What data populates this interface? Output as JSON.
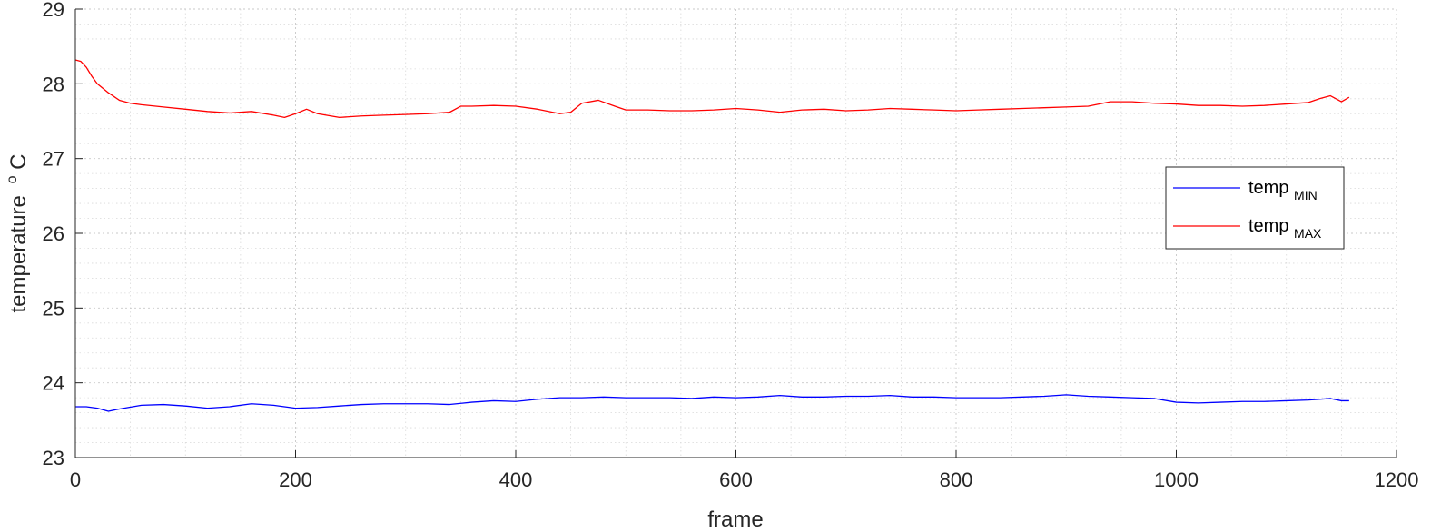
{
  "chart_data": {
    "type": "line",
    "title": "",
    "xlabel": "frame",
    "ylabel": "temperature",
    "ylabel_sup": "o",
    "ylabel_unit": "C",
    "xlim": [
      0,
      1200
    ],
    "ylim": [
      23,
      29
    ],
    "x_ticks": [
      "0",
      "200",
      "400",
      "600",
      "800",
      "1000",
      "1200"
    ],
    "y_ticks": [
      "23",
      "24",
      "25",
      "26",
      "27",
      "28",
      "29"
    ],
    "grid": true,
    "minor_grid": true,
    "legend_position": "right",
    "series": [
      {
        "name": "temp",
        "name_sub": "MIN",
        "color": "#0000ff",
        "points": [
          [
            0,
            23.68
          ],
          [
            10,
            23.68
          ],
          [
            20,
            23.66
          ],
          [
            30,
            23.62
          ],
          [
            40,
            23.65
          ],
          [
            60,
            23.7
          ],
          [
            80,
            23.71
          ],
          [
            100,
            23.69
          ],
          [
            120,
            23.66
          ],
          [
            140,
            23.68
          ],
          [
            160,
            23.72
          ],
          [
            180,
            23.7
          ],
          [
            200,
            23.66
          ],
          [
            220,
            23.67
          ],
          [
            240,
            23.69
          ],
          [
            260,
            23.71
          ],
          [
            280,
            23.72
          ],
          [
            300,
            23.72
          ],
          [
            320,
            23.72
          ],
          [
            340,
            23.71
          ],
          [
            360,
            23.74
          ],
          [
            380,
            23.76
          ],
          [
            400,
            23.75
          ],
          [
            420,
            23.78
          ],
          [
            440,
            23.8
          ],
          [
            460,
            23.8
          ],
          [
            480,
            23.81
          ],
          [
            500,
            23.8
          ],
          [
            520,
            23.8
          ],
          [
            540,
            23.8
          ],
          [
            560,
            23.79
          ],
          [
            580,
            23.81
          ],
          [
            600,
            23.8
          ],
          [
            620,
            23.81
          ],
          [
            640,
            23.83
          ],
          [
            660,
            23.81
          ],
          [
            680,
            23.81
          ],
          [
            700,
            23.82
          ],
          [
            720,
            23.82
          ],
          [
            740,
            23.83
          ],
          [
            760,
            23.81
          ],
          [
            780,
            23.81
          ],
          [
            800,
            23.8
          ],
          [
            820,
            23.8
          ],
          [
            840,
            23.8
          ],
          [
            860,
            23.81
          ],
          [
            880,
            23.82
          ],
          [
            900,
            23.84
          ],
          [
            920,
            23.82
          ],
          [
            940,
            23.81
          ],
          [
            960,
            23.8
          ],
          [
            980,
            23.79
          ],
          [
            1000,
            23.74
          ],
          [
            1020,
            23.73
          ],
          [
            1040,
            23.74
          ],
          [
            1060,
            23.75
          ],
          [
            1080,
            23.75
          ],
          [
            1100,
            23.76
          ],
          [
            1120,
            23.77
          ],
          [
            1140,
            23.79
          ],
          [
            1150,
            23.76
          ],
          [
            1157,
            23.76
          ]
        ]
      },
      {
        "name": "temp",
        "name_sub": "MAX",
        "color": "#ff0000",
        "points": [
          [
            0,
            28.32
          ],
          [
            5,
            28.3
          ],
          [
            10,
            28.22
          ],
          [
            15,
            28.1
          ],
          [
            20,
            28.0
          ],
          [
            30,
            27.88
          ],
          [
            40,
            27.78
          ],
          [
            50,
            27.74
          ],
          [
            60,
            27.72
          ],
          [
            80,
            27.69
          ],
          [
            100,
            27.66
          ],
          [
            120,
            27.63
          ],
          [
            140,
            27.61
          ],
          [
            160,
            27.63
          ],
          [
            180,
            27.58
          ],
          [
            190,
            27.55
          ],
          [
            200,
            27.6
          ],
          [
            210,
            27.66
          ],
          [
            220,
            27.6
          ],
          [
            240,
            27.55
          ],
          [
            260,
            27.57
          ],
          [
            280,
            27.58
          ],
          [
            300,
            27.59
          ],
          [
            320,
            27.6
          ],
          [
            340,
            27.62
          ],
          [
            350,
            27.7
          ],
          [
            360,
            27.7
          ],
          [
            380,
            27.71
          ],
          [
            400,
            27.7
          ],
          [
            420,
            27.66
          ],
          [
            440,
            27.6
          ],
          [
            450,
            27.62
          ],
          [
            460,
            27.74
          ],
          [
            475,
            27.78
          ],
          [
            490,
            27.7
          ],
          [
            500,
            27.65
          ],
          [
            520,
            27.65
          ],
          [
            540,
            27.64
          ],
          [
            560,
            27.64
          ],
          [
            580,
            27.65
          ],
          [
            600,
            27.67
          ],
          [
            620,
            27.65
          ],
          [
            640,
            27.62
          ],
          [
            660,
            27.65
          ],
          [
            680,
            27.66
          ],
          [
            700,
            27.64
          ],
          [
            720,
            27.65
          ],
          [
            740,
            27.67
          ],
          [
            760,
            27.66
          ],
          [
            780,
            27.65
          ],
          [
            800,
            27.64
          ],
          [
            820,
            27.65
          ],
          [
            840,
            27.66
          ],
          [
            860,
            27.67
          ],
          [
            880,
            27.68
          ],
          [
            900,
            27.69
          ],
          [
            920,
            27.7
          ],
          [
            940,
            27.76
          ],
          [
            960,
            27.76
          ],
          [
            980,
            27.74
          ],
          [
            1000,
            27.73
          ],
          [
            1020,
            27.71
          ],
          [
            1040,
            27.71
          ],
          [
            1060,
            27.7
          ],
          [
            1080,
            27.71
          ],
          [
            1100,
            27.73
          ],
          [
            1120,
            27.75
          ],
          [
            1130,
            27.8
          ],
          [
            1140,
            27.84
          ],
          [
            1145,
            27.8
          ],
          [
            1150,
            27.76
          ],
          [
            1157,
            27.82
          ]
        ]
      }
    ]
  }
}
